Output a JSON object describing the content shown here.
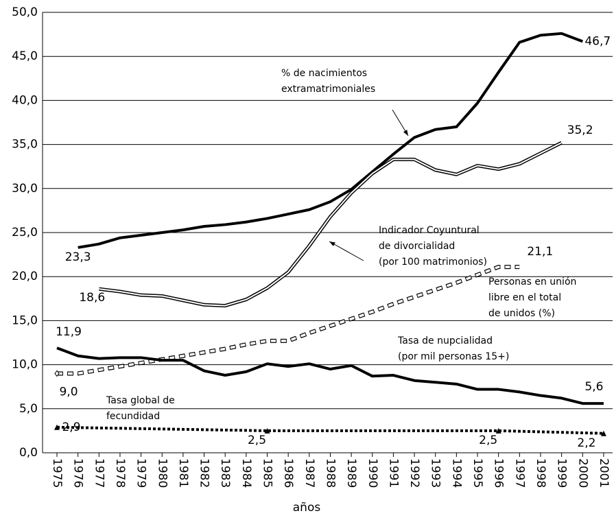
{
  "chart_data": {
    "type": "line",
    "x_label": "años",
    "categories": [
      "1975",
      "1976",
      "1977",
      "1978",
      "1979",
      "1980",
      "1981",
      "1982",
      "1983",
      "1984",
      "1985",
      "1986",
      "1987",
      "1988",
      "1989",
      "1990",
      "1991",
      "1992",
      "1993",
      "1994",
      "1995",
      "1996",
      "1997",
      "1998",
      "1999",
      "2000",
      "2001"
    ],
    "ylim": [
      0,
      50
    ],
    "yticks": [
      {
        "value": 0,
        "label": "0,0"
      },
      {
        "value": 5,
        "label": "5,0"
      },
      {
        "value": 10,
        "label": "10,0"
      },
      {
        "value": 15,
        "label": "15,0"
      },
      {
        "value": 20,
        "label": "20,0"
      },
      {
        "value": 25,
        "label": "25,0"
      },
      {
        "value": 30,
        "label": "30,0"
      },
      {
        "value": 35,
        "label": "35,0"
      },
      {
        "value": 40,
        "label": "40,0"
      },
      {
        "value": 45,
        "label": "45,0"
      },
      {
        "value": 50,
        "label": "50,0"
      }
    ],
    "grid": true,
    "series": [
      {
        "label_lines": [
          "% de nacimientos",
          "extramatrimoniales"
        ],
        "color": "#000000",
        "style": "solid",
        "values": [
          null,
          23.3,
          23.7,
          24.4,
          24.7,
          25.0,
          25.3,
          25.7,
          25.9,
          26.2,
          26.6,
          27.1,
          27.6,
          28.5,
          29.9,
          31.9,
          33.9,
          35.8,
          36.7,
          37.0,
          39.7,
          43.2,
          46.6,
          47.4,
          47.6,
          46.7,
          null
        ],
        "value_labels": [
          null,
          "23,3",
          null,
          null,
          null,
          null,
          null,
          null,
          null,
          null,
          null,
          null,
          null,
          null,
          null,
          null,
          null,
          null,
          null,
          null,
          null,
          null,
          null,
          null,
          null,
          "46,7",
          null
        ]
      },
      {
        "label_lines": [
          "Indicador Coyuntural",
          "de divorcialidad",
          "(por 100 matrimonios)"
        ],
        "color": "#000000",
        "style": "double",
        "values": [
          null,
          null,
          18.6,
          18.3,
          17.9,
          17.8,
          17.3,
          16.8,
          16.7,
          17.4,
          18.7,
          20.5,
          23.5,
          26.8,
          29.5,
          31.7,
          33.3,
          33.3,
          32.1,
          31.6,
          32.6,
          32.2,
          32.8,
          34.0,
          35.2,
          null,
          null
        ],
        "value_labels": [
          null,
          null,
          "18,6",
          null,
          null,
          null,
          null,
          null,
          null,
          null,
          null,
          null,
          null,
          null,
          null,
          null,
          null,
          null,
          null,
          null,
          null,
          null,
          null,
          null,
          "35,2",
          null,
          null
        ]
      },
      {
        "label_lines": [
          "Personas en unión",
          "libre en el total",
          "de unidos (%)"
        ],
        "color": "#000000",
        "style": "dashed",
        "values": [
          9.0,
          9.0,
          9.4,
          9.8,
          10.2,
          10.6,
          11.0,
          11.4,
          11.8,
          12.3,
          12.7,
          12.7,
          13.6,
          14.4,
          15.2,
          16.0,
          16.9,
          17.7,
          18.5,
          19.3,
          20.2,
          21.1,
          21.1,
          null,
          null,
          null,
          null
        ],
        "value_labels": [
          "9,0",
          null,
          null,
          null,
          null,
          null,
          null,
          null,
          null,
          null,
          null,
          null,
          null,
          null,
          null,
          null,
          null,
          null,
          null,
          null,
          null,
          null,
          "21,1",
          null,
          null,
          null,
          null
        ]
      },
      {
        "label_lines": [
          "Tasa de nupcialidad",
          "(por mil personas 15+)"
        ],
        "color": "#000000",
        "style": "solid",
        "values": [
          11.9,
          11.0,
          10.7,
          10.8,
          10.8,
          10.5,
          10.5,
          9.3,
          8.8,
          9.2,
          10.1,
          9.8,
          10.1,
          9.5,
          9.9,
          8.7,
          8.8,
          8.2,
          8.0,
          7.8,
          7.2,
          7.2,
          6.9,
          6.5,
          6.2,
          5.6,
          5.6
        ],
        "value_labels": [
          "11,9",
          null,
          null,
          null,
          null,
          null,
          null,
          null,
          null,
          null,
          null,
          null,
          null,
          null,
          null,
          null,
          null,
          null,
          null,
          null,
          null,
          null,
          null,
          null,
          null,
          null,
          "5,6"
        ]
      },
      {
        "label_lines": [
          "Tasa global de",
          "fecundidad"
        ],
        "color": "#000000",
        "style": "dotted",
        "values": [
          2.9,
          2.86,
          2.82,
          2.78,
          2.74,
          2.7,
          2.66,
          2.62,
          2.58,
          2.54,
          2.5,
          2.5,
          2.5,
          2.5,
          2.5,
          2.5,
          2.5,
          2.5,
          2.5,
          2.5,
          2.5,
          2.5,
          2.44,
          2.38,
          2.32,
          2.26,
          2.2
        ],
        "value_labels": [
          "2,9",
          null,
          null,
          null,
          null,
          null,
          null,
          null,
          null,
          null,
          "2,5",
          null,
          null,
          null,
          null,
          null,
          null,
          null,
          null,
          null,
          null,
          "2,5",
          null,
          null,
          null,
          null,
          "2,2"
        ]
      }
    ]
  }
}
